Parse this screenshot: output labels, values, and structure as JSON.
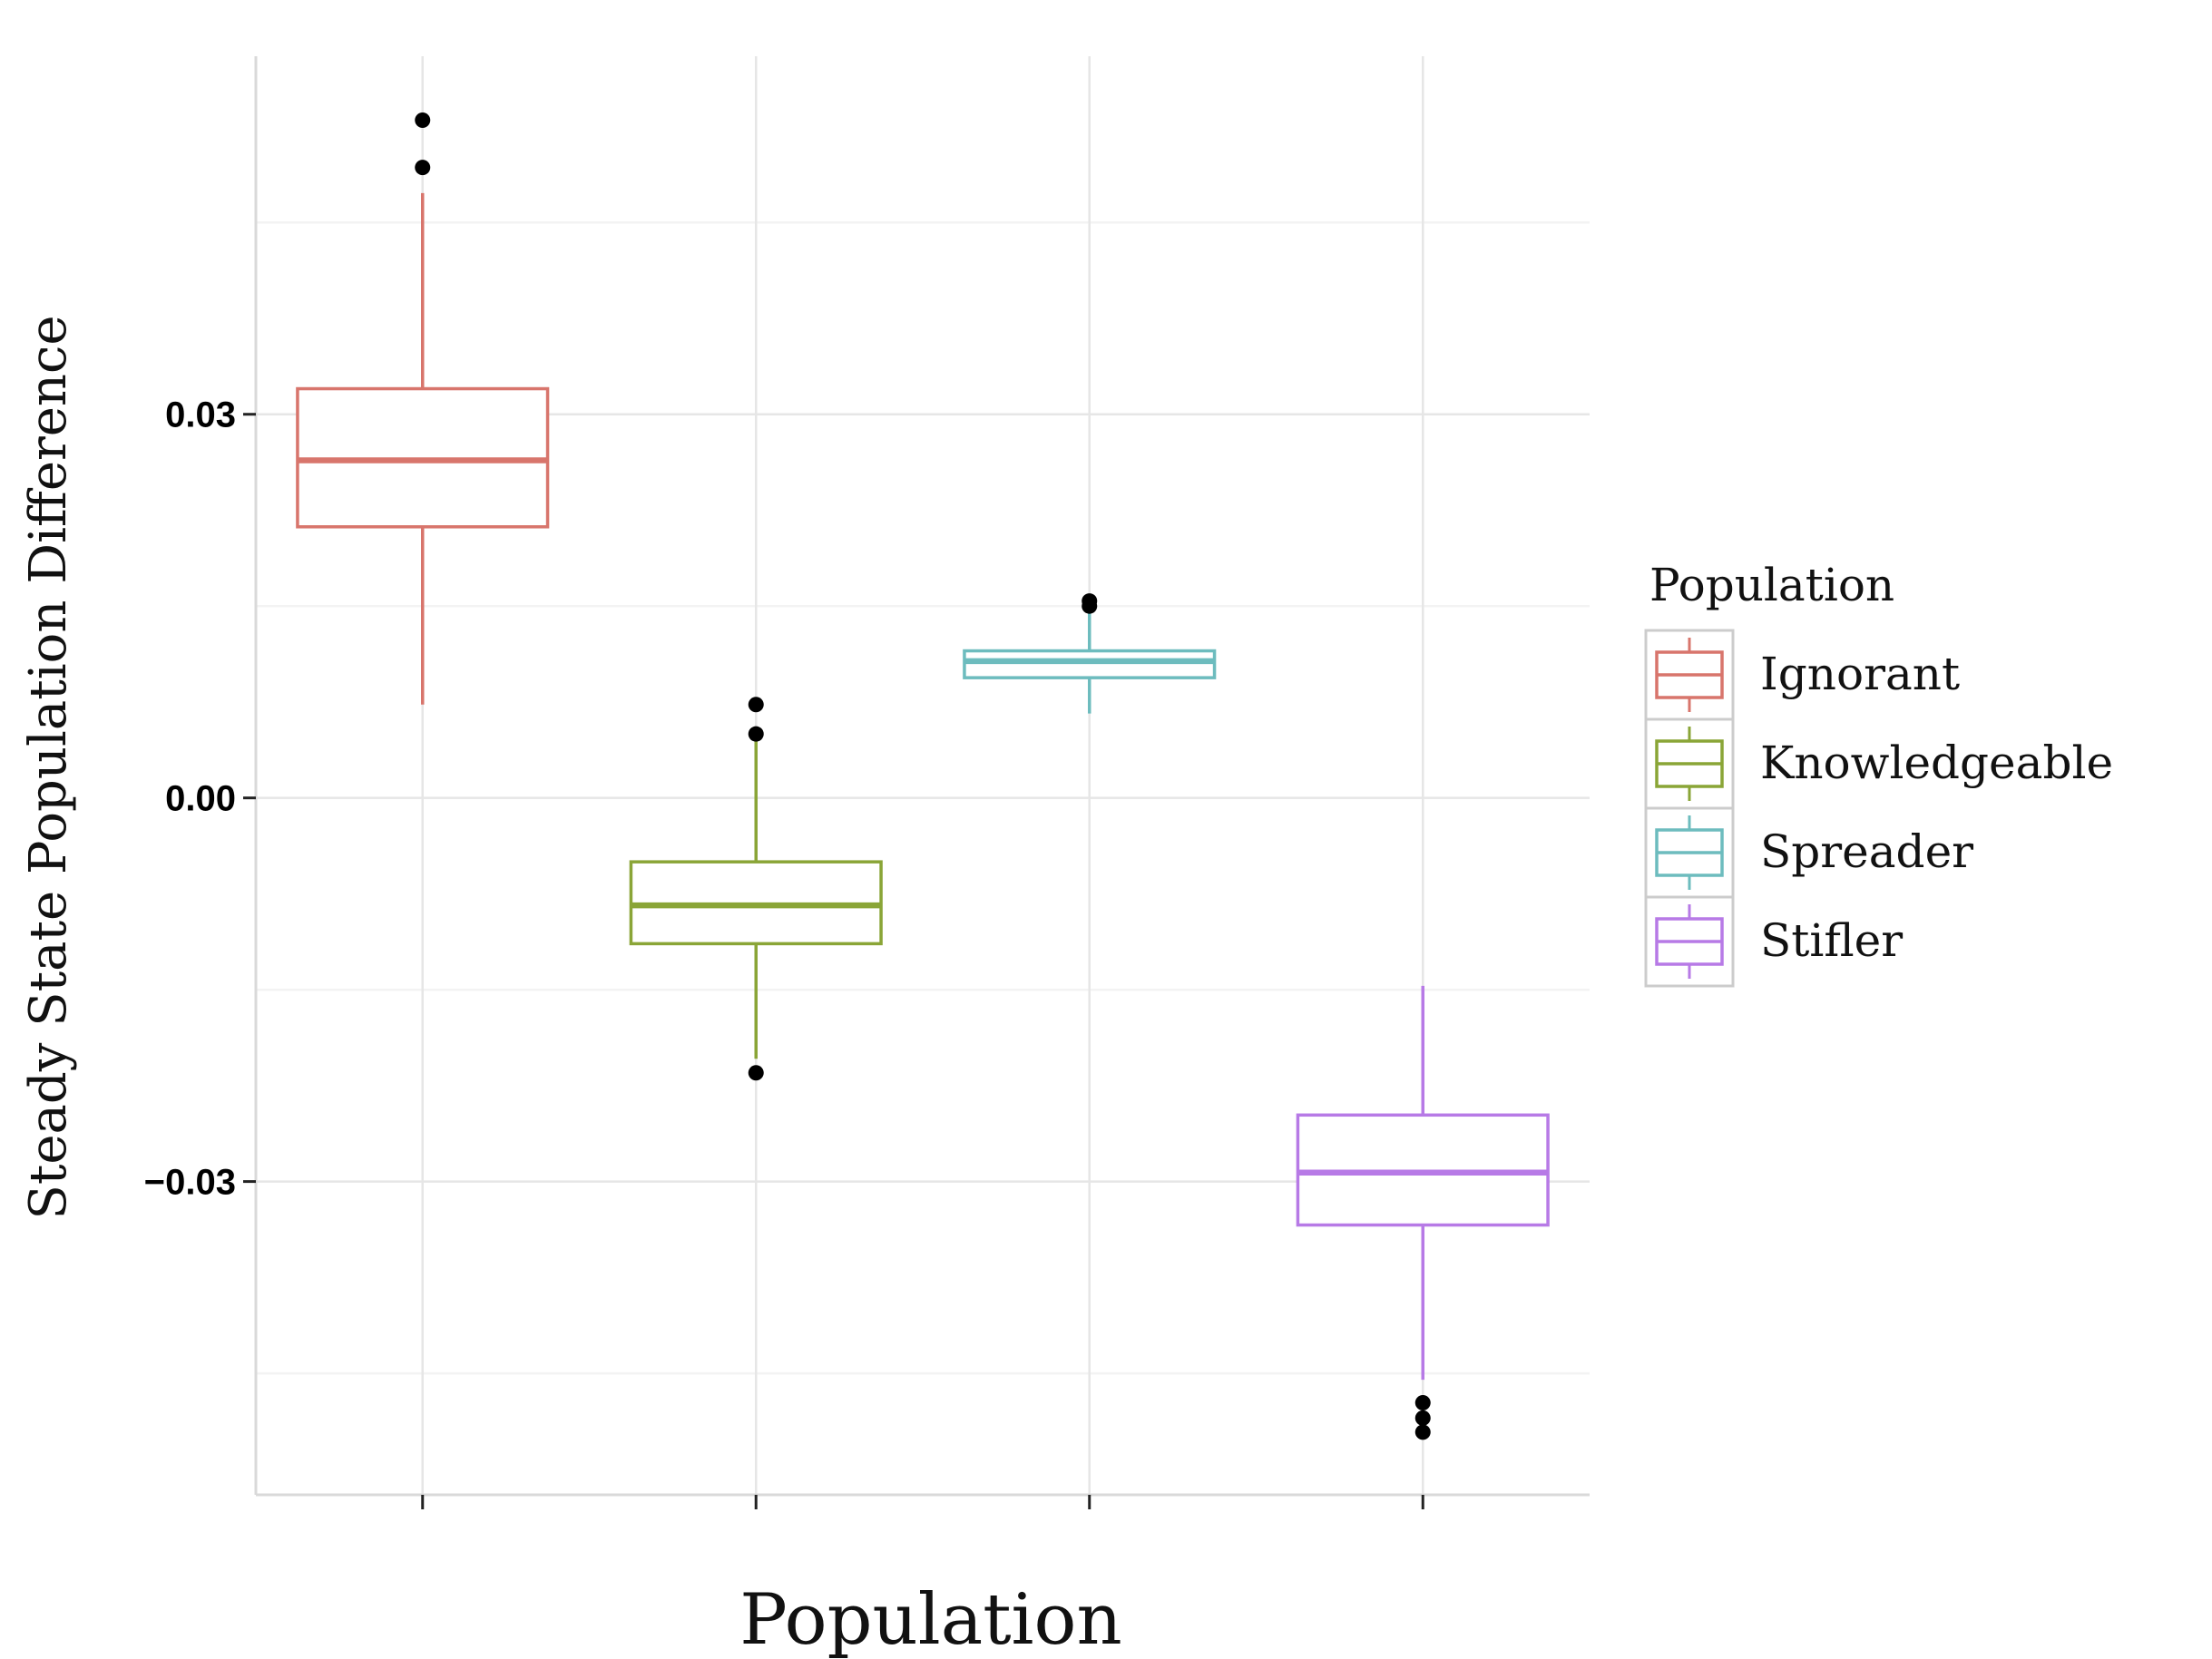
{
  "chart_data": {
    "type": "box",
    "xlabel": "Population",
    "ylabel": "Steady State Population Difference",
    "ylim": [
      -0.0545,
      0.058
    ],
    "y_ticks": [
      {
        "value": 0.03,
        "label": "0.03"
      },
      {
        "value": 0.0,
        "label": "0.00"
      },
      {
        "value": -0.03,
        "label": "−0.03"
      }
    ],
    "x_tick_labels_shown": false,
    "grid": true,
    "legend": {
      "title": "Population",
      "position": "right",
      "entries": [
        "Ignorant",
        "Knowledgeable",
        "Spreader",
        "Stifler"
      ]
    },
    "series": [
      {
        "name": "Ignorant",
        "color": "#d8756c",
        "whisker_low": 0.0073,
        "q1": 0.0212,
        "median": 0.0264,
        "q3": 0.032,
        "whisker_high": 0.0473,
        "outliers": [
          0.053,
          0.0493
        ]
      },
      {
        "name": "Knowledgeable",
        "color": "#8aa537",
        "whisker_low": -0.0204,
        "q1": -0.0114,
        "median": -0.0084,
        "q3": -0.005,
        "whisker_high": 0.0045,
        "outliers": [
          0.0073,
          0.005,
          -0.0215
        ]
      },
      {
        "name": "Spreader",
        "color": "#6dbcbe",
        "whisker_low": 0.0066,
        "q1": 0.0094,
        "median": 0.0107,
        "q3": 0.0115,
        "whisker_high": 0.0146,
        "outliers": [
          0.0154,
          0.015
        ]
      },
      {
        "name": "Stifler",
        "color": "#b77ae6",
        "whisker_low": -0.0455,
        "q1": -0.0334,
        "median": -0.0293,
        "q3": -0.0248,
        "whisker_high": -0.0147,
        "outliers": [
          -0.0473,
          -0.0485,
          -0.0496
        ]
      }
    ]
  }
}
